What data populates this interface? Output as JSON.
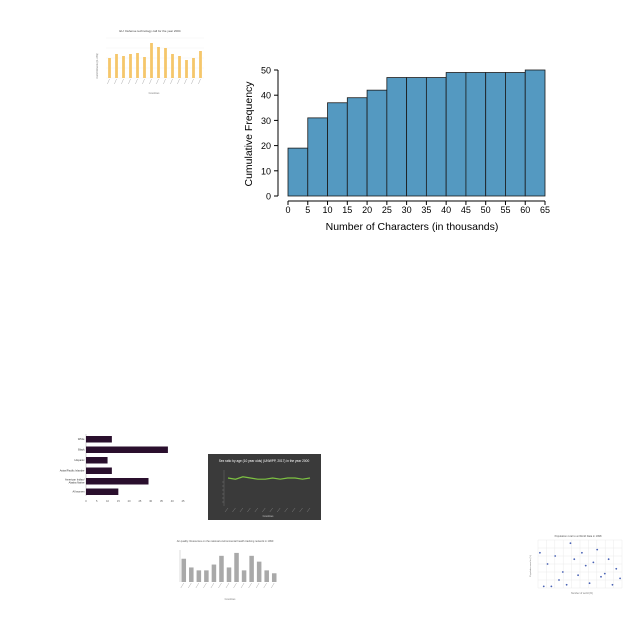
{
  "main_chart": {
    "chart_data": {
      "type": "bar",
      "title": "",
      "xlabel": "Number of Characters (in thousands)",
      "ylabel": "Cumulative Frequency",
      "x_ticks": [
        "0",
        "5",
        "10",
        "15",
        "20",
        "25",
        "30",
        "35",
        "40",
        "45",
        "50",
        "55",
        "60",
        "65"
      ],
      "y_ticks": [
        "0",
        "10",
        "20",
        "30",
        "40",
        "50"
      ],
      "bin_edges": [
        0,
        5,
        10,
        15,
        20,
        25,
        30,
        35,
        40,
        45,
        50,
        55,
        60,
        65
      ],
      "values": [
        19,
        31,
        37,
        39,
        42,
        47,
        47,
        47,
        49,
        49,
        49,
        49,
        50
      ],
      "ylim": [
        0,
        50
      ],
      "bar_color": "#5499c1",
      "grid": false
    }
  },
  "thumb_orange": {
    "chart_data": {
      "type": "bar",
      "title": "EU: Defense technology call for the year 2004",
      "xlabel": "Countries",
      "ylabel": "Commitments (in US$)",
      "values": [
        20,
        24,
        22,
        24,
        25,
        21,
        35,
        31,
        30,
        24,
        22,
        18,
        20,
        27
      ],
      "bar_color": "#f5c76b"
    }
  },
  "thumb_purple": {
    "chart_data": {
      "type": "bar",
      "categories": [
        "White",
        "Black",
        "Hispanic",
        "Asian/Pacific Islander",
        "American Indian/ Alaska Native",
        "All women"
      ],
      "values": [
        12,
        38,
        10,
        12,
        29,
        15
      ],
      "x_ticks": [
        "0",
        "5",
        "10",
        "15",
        "20",
        "25",
        "30",
        "35",
        "40",
        "45"
      ],
      "bar_color": "#2a0f2d"
    }
  },
  "thumb_dark": {
    "chart_data": {
      "type": "line",
      "title": "Sex ratio by age (10 year olds) (UNWPP, 2017) in the year 2000",
      "xlabel": "Countries",
      "values": [
        105,
        104,
        106,
        105,
        104,
        104,
        105,
        104,
        105,
        105,
        104,
        105
      ],
      "line_color": "#7dc242",
      "background": "#3a3a3a"
    }
  },
  "thumb_gray": {
    "chart_data": {
      "type": "bar",
      "title": "Air quality: Resources on the national environmental health tracking network in 1990",
      "xlabel": "Countries",
      "ylabel": "",
      "values": [
        8,
        5,
        4,
        4,
        6,
        9,
        5,
        10,
        4,
        9,
        7,
        4,
        3
      ],
      "bar_color": "#a9a9a9"
    }
  },
  "thumb_scatter": {
    "chart_data": {
      "type": "scatter",
      "title": "Population rural to at World Data in 1998",
      "xlabel": "Number of world (%)",
      "ylabel": "Population rural to (%)",
      "points": [
        [
          1,
          22
        ],
        [
          2,
          1
        ],
        [
          3,
          15
        ],
        [
          4,
          1
        ],
        [
          5,
          20
        ],
        [
          6,
          5
        ],
        [
          7,
          10
        ],
        [
          8,
          2
        ],
        [
          9,
          28
        ],
        [
          10,
          18
        ],
        [
          11,
          8
        ],
        [
          12,
          22
        ],
        [
          13,
          14
        ],
        [
          14,
          3
        ],
        [
          15,
          16
        ],
        [
          16,
          24
        ],
        [
          17,
          7
        ],
        [
          18,
          9
        ],
        [
          19,
          18
        ],
        [
          20,
          2
        ],
        [
          21,
          12
        ],
        [
          22,
          6
        ]
      ],
      "point_color": "#4a63b5"
    }
  }
}
